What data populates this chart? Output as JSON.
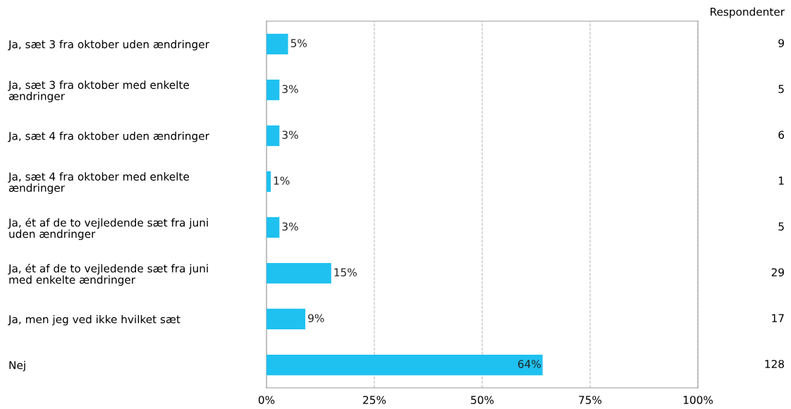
{
  "chart_data": {
    "type": "bar",
    "orientation": "horizontal",
    "categories": [
      "Ja, sæt 3 fra oktober uden ændringer",
      "Ja, sæt 3 fra oktober med enkelte\nændringer",
      "Ja, sæt 4 fra oktober uden ændringer",
      "Ja, sæt 4 fra oktober med enkelte\nændringer",
      "Ja, ét af de to vejledende sæt fra juni\nuden ændringer",
      "Ja, ét af de to vejledende sæt fra juni\nmed enkelte ændringer",
      "Ja, men jeg ved ikke hvilket sæt",
      "Nej"
    ],
    "values": [
      5,
      3,
      3,
      1,
      3,
      15,
      9,
      64
    ],
    "value_labels": [
      "5%",
      "3%",
      "3%",
      "1%",
      "3%",
      "15%",
      "9%",
      "64%"
    ],
    "color": "#1fc1f0",
    "xlim": [
      0,
      100
    ],
    "xticks": [
      {
        "value": 0,
        "label": "0%"
      },
      {
        "value": 25,
        "label": "25%"
      },
      {
        "value": 50,
        "label": "50%"
      },
      {
        "value": 75,
        "label": "75%"
      },
      {
        "value": 100,
        "label": "100%"
      }
    ],
    "grid": "x",
    "line_style": "dashed",
    "annotations": [
      "Respondenter",
      "9",
      "5",
      "6",
      "1",
      "5",
      "29",
      "17",
      "128"
    ]
  }
}
